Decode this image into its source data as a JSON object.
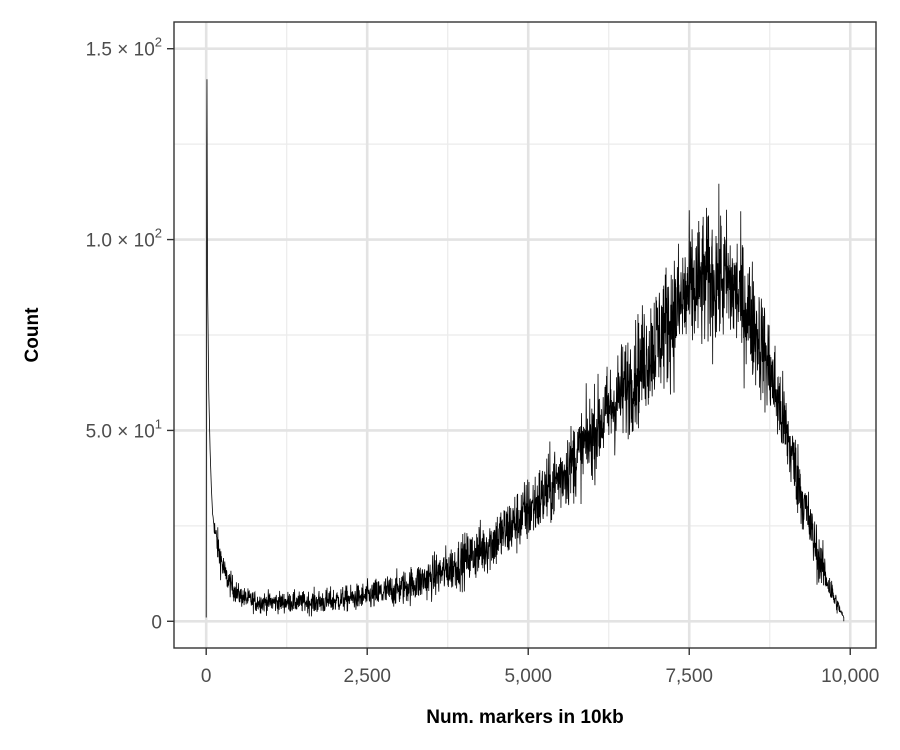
{
  "chart_data": {
    "type": "line",
    "title": "",
    "xlabel": "Num. markers in 10kb",
    "ylabel": "Count",
    "xlim": [
      -500,
      10400
    ],
    "ylim": [
      -7,
      157
    ],
    "x_ticks": [
      {
        "value": 0,
        "label": "0"
      },
      {
        "value": 2500,
        "label": "2,500"
      },
      {
        "value": 5000,
        "label": "5,000"
      },
      {
        "value": 7500,
        "label": "7,500"
      },
      {
        "value": 10000,
        "label": "10,000"
      }
    ],
    "y_ticks": [
      {
        "value": 0,
        "label": "0"
      },
      {
        "value": 50,
        "label": "5.0 × 10",
        "exp": "1"
      },
      {
        "value": 100,
        "label": "1.0 × 10",
        "exp": "2"
      },
      {
        "value": 150,
        "label": "1.5 × 10",
        "exp": "2"
      }
    ],
    "x_minor_ticks": [
      1250,
      3750,
      6250,
      8750
    ],
    "y_minor_ticks": [
      25,
      75,
      125
    ],
    "grid": true,
    "series": [
      {
        "color": "#000000",
        "x": [
          0,
          10,
          20,
          40,
          60,
          80,
          100,
          150,
          200,
          250,
          300,
          400,
          500,
          600,
          800,
          1000,
          1250,
          1500,
          1750,
          2000,
          2250,
          2500,
          2750,
          3000,
          3250,
          3500,
          3750,
          4000,
          4250,
          4500,
          4750,
          5000,
          5250,
          5500,
          5750,
          6000,
          6250,
          6500,
          6750,
          7000,
          7250,
          7500,
          7750,
          8000,
          8250,
          8500,
          8750,
          9000,
          9250,
          9500,
          9750,
          9900
        ],
        "y": [
          1,
          155,
          90,
          60,
          45,
          35,
          28,
          22,
          18,
          15,
          12,
          9,
          7,
          6,
          5,
          5,
          5,
          5,
          5,
          5.5,
          6,
          6.5,
          7.5,
          8.5,
          10,
          11.5,
          13.5,
          16,
          18.5,
          21.5,
          25,
          29,
          33,
          38,
          43,
          49,
          55,
          61,
          67,
          74,
          80,
          86,
          89,
          90,
          86,
          78,
          66,
          50,
          33,
          17,
          6,
          1
        ],
        "noise": [
          0,
          0,
          0,
          0,
          0,
          0,
          0,
          4,
          4,
          4,
          3,
          3,
          2.5,
          2.5,
          2.5,
          2.5,
          2.5,
          2.5,
          3,
          3,
          3,
          3.5,
          4,
          4,
          4.5,
          5,
          5.5,
          6,
          6.5,
          7,
          7.5,
          8,
          8.5,
          9,
          9.5,
          10,
          11,
          12,
          13,
          14,
          15,
          16,
          16,
          16,
          15,
          14,
          12,
          10,
          8,
          6,
          3,
          0
        ]
      }
    ]
  }
}
